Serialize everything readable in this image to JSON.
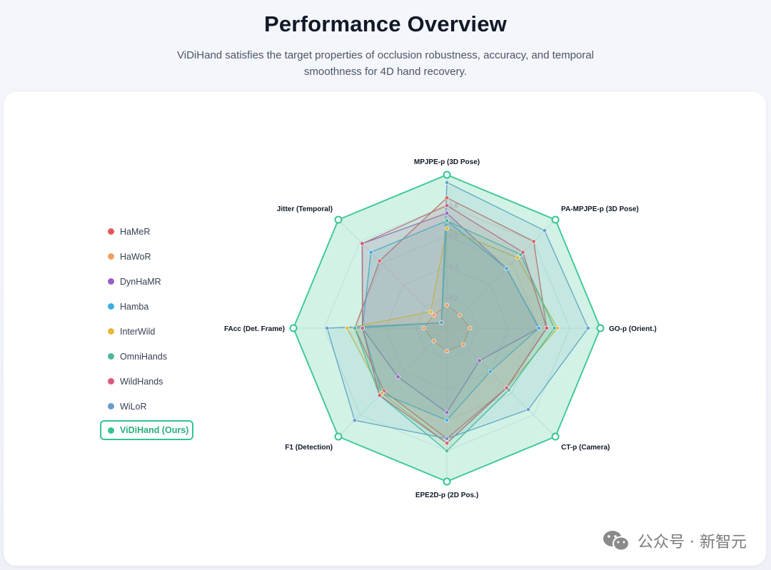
{
  "header": {
    "title": "Performance Overview",
    "subtitle": "ViDiHand satisfies the target properties of occlusion robustness, accuracy, and temporal smoothness for 4D hand recovery."
  },
  "watermark": {
    "text": "公众号 · 新智元"
  },
  "chart_data": {
    "type": "radar",
    "axes": [
      "MPJPE-p (3D Pose)",
      "PA-MPJPE-p (3D Pose)",
      "GO-p (Orient.)",
      "CT-p (Camera)",
      "EPE2D-p (2D Pos.)",
      "F1 (Detection)",
      "FAcc (Det. Frame)",
      "Jitter (Temporal)"
    ],
    "rlim": [
      0,
      1
    ],
    "ticks": [
      "0.2",
      "0.4",
      "0.6",
      "0.8"
    ],
    "legend_position": "left",
    "series": [
      {
        "name": "HaMeR",
        "color": "#e05a5a",
        "values": [
          0.85,
          0.8,
          0.65,
          0.55,
          0.72,
          0.58,
          0.6,
          0.62
        ]
      },
      {
        "name": "HaWoR",
        "color": "#f0a060",
        "values": [
          0.15,
          0.12,
          0.15,
          0.15,
          0.15,
          0.12,
          0.15,
          0.12
        ]
      },
      {
        "name": "DynHaMR",
        "color": "#9a5cc8",
        "values": [
          0.75,
          0.55,
          0.6,
          0.3,
          0.55,
          0.45,
          0.55,
          0.78
        ]
      },
      {
        "name": "Hamba",
        "color": "#3aaee0",
        "values": [
          0.7,
          0.55,
          0.6,
          0.4,
          0.6,
          0.6,
          0.55,
          0.7
        ]
      },
      {
        "name": "InterWild",
        "color": "#e8b93a",
        "values": [
          0.65,
          0.65,
          0.72,
          0.55,
          0.75,
          0.6,
          0.65,
          0.15
        ]
      },
      {
        "name": "OmniHands",
        "color": "#4db89a",
        "values": [
          0.7,
          0.68,
          0.7,
          0.57,
          0.8,
          0.62,
          0.6,
          0.05
        ]
      },
      {
        "name": "WildHands",
        "color": "#d6587a",
        "values": [
          0.8,
          0.7,
          0.65,
          0.55,
          0.75,
          0.62,
          0.55,
          0.78
        ]
      },
      {
        "name": "WiLoR",
        "color": "#6a9ad0",
        "values": [
          0.95,
          0.9,
          0.92,
          0.75,
          0.72,
          0.85,
          0.78,
          0.05
        ]
      },
      {
        "name": "ViDiHand (Ours)",
        "color": "#34c58f",
        "values": [
          1.0,
          1.0,
          1.0,
          1.0,
          1.0,
          1.0,
          1.0,
          1.0
        ]
      }
    ]
  }
}
